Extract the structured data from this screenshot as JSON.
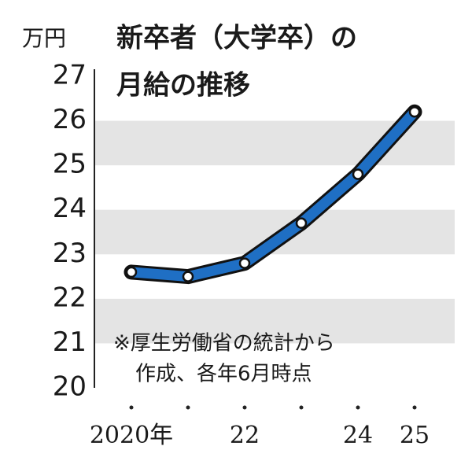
{
  "chart_data": {
    "type": "line",
    "title": [
      "新卒者（大学卒）の",
      "月給の推移"
    ],
    "y_unit": "万円",
    "note": [
      "※厚生労働省の統計から",
      "作成、各年6月時点"
    ],
    "categories": [
      "2020年",
      null,
      "22",
      null,
      "24",
      "25"
    ],
    "series": [
      {
        "name": "月給",
        "color": "#1f6fc4",
        "values": [
          22.6,
          22.5,
          22.8,
          23.7,
          24.8,
          26.2
        ]
      }
    ],
    "ylim": [
      20,
      27
    ],
    "yticks": [
      20,
      21,
      22,
      23,
      24,
      25,
      26,
      27
    ],
    "grid": "bands"
  }
}
